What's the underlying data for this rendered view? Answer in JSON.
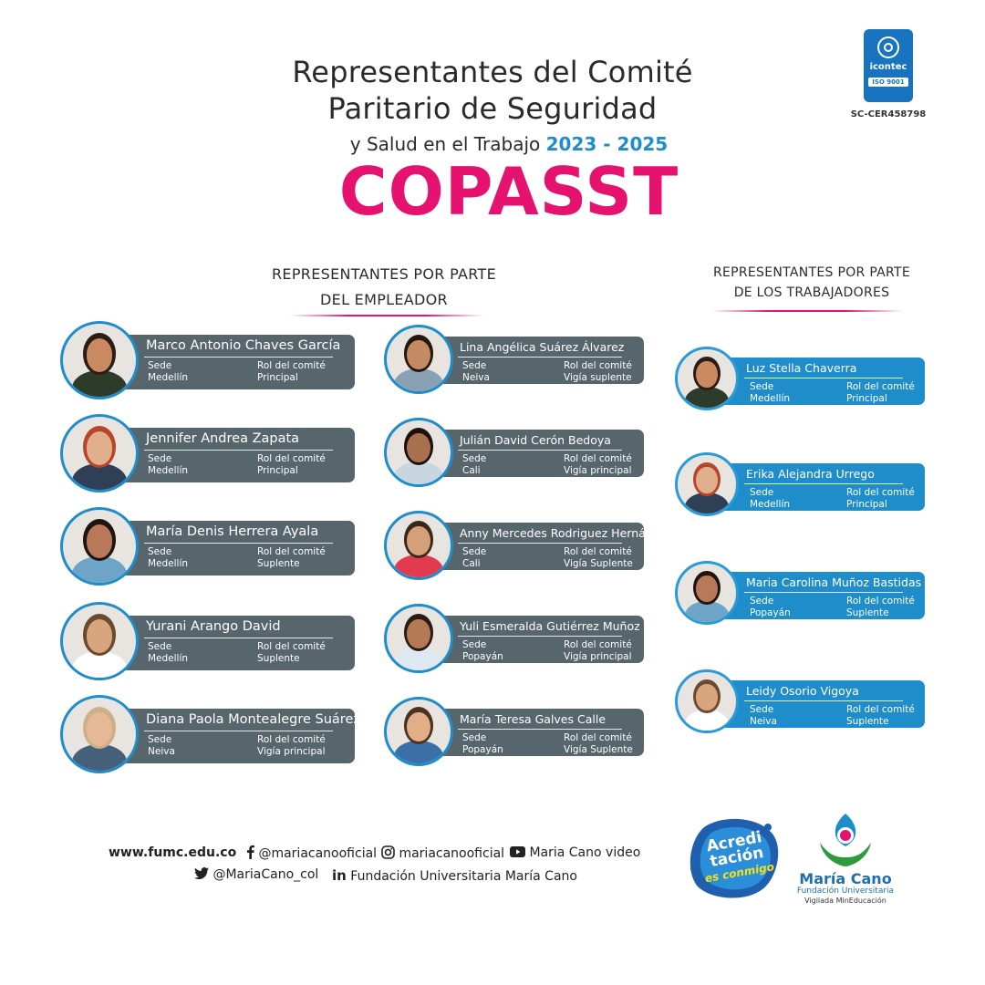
{
  "header": {
    "title_line1": "Representantes del Comité",
    "title_line2": "Paritario de Seguridad",
    "title_line3_text": "y Salud en el Trabajo",
    "title_line3_years": "2023 - 2025",
    "acronym": "COPASST"
  },
  "certification": {
    "brand": "icontec",
    "standard": "ISO 9001",
    "code": "SC-CER458798"
  },
  "employer_section": {
    "heading_line1": "REPRESENTANTES POR PARTE",
    "heading_line2": "DEL EMPLEADOR"
  },
  "workers_section": {
    "heading_line1": "REPRESENTANTES POR PARTE",
    "heading_line2": "DE LOS TRABAJADORES"
  },
  "field_labels": {
    "sede": "Sede",
    "rol": "Rol del comité"
  },
  "employer_left": [
    {
      "name": "Marco Antonio Chaves García",
      "sede": "Medellín",
      "rol": "Principal"
    },
    {
      "name": "Jennifer Andrea Zapata",
      "sede": "Medellín",
      "rol": "Principal"
    },
    {
      "name": "María Denis Herrera Ayala",
      "sede": "Medellín",
      "rol": "Suplente"
    },
    {
      "name": "Yurani Arango David",
      "sede": "Medellín",
      "rol": "Suplente"
    },
    {
      "name": "Diana Paola Montealegre Suárez",
      "sede": "Neiva",
      "rol": "Vigía principal"
    }
  ],
  "employer_right": [
    {
      "name": "Lina Angélica Suárez Álvarez",
      "sede": "Neiva",
      "rol": "Vigía suplente"
    },
    {
      "name": "Julián David Cerón Bedoya",
      "sede": "Cali",
      "rol": "Vigía principal"
    },
    {
      "name": "Anny Mercedes Rodriguez Hernández",
      "sede": "Cali",
      "rol": "Vigía Suplente"
    },
    {
      "name": "Yuli Esmeralda Gutiérrez Muñoz",
      "sede": "Popayán",
      "rol": "Vigía principal"
    },
    {
      "name": "María Teresa Galves Calle",
      "sede": "Popayán",
      "rol": "Vigía Suplente"
    }
  ],
  "workers": [
    {
      "name": "Luz Stella Chaverra",
      "sede": "Medellín",
      "rol": "Principal"
    },
    {
      "name": "Erika Alejandra Urrego",
      "sede": "Medellín",
      "rol": "Principal"
    },
    {
      "name": "Maria Carolina Muñoz Bastidas",
      "sede": "Popayán",
      "rol": "Suplente"
    },
    {
      "name": "Leidy Osorio Vigoya",
      "sede": "Neiva",
      "rol": "Suplente"
    }
  ],
  "footer": {
    "website": "www.fumc.edu.co",
    "facebook": "@mariacanooficial",
    "instagram": "mariacanooficial",
    "youtube": "Maria Cano video",
    "twitter": "@MariaCano_col",
    "linkedin": "Fundación Universitaria María Cano"
  },
  "badges": {
    "acred_line1": "Acredi",
    "acred_line2": "tación",
    "acred_line3": "es conmigo",
    "mc_name": "María Cano",
    "mc_sub": "Fundación Universitaria",
    "mc_note": "Vigilada MinEducación"
  },
  "colors": {
    "magenta": "#e5126f",
    "blue": "#1f8dc9",
    "slate": "#57656c"
  }
}
